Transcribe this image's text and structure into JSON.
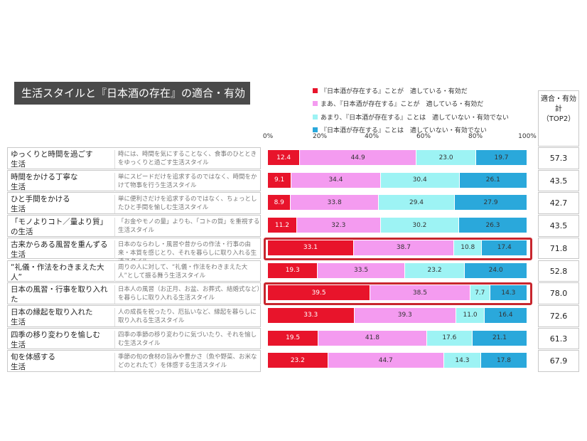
{
  "title": "生活スタイルと『日本酒の存在』の適合・有効度",
  "top2_header": [
    "適合・有効",
    "計",
    "（TOP2）"
  ],
  "colors": [
    "#e8142b",
    "#f49bf0",
    "#9df3f4",
    "#2aa8db"
  ],
  "chart_data": {
    "type": "bar",
    "stacked": "horizontal-100%",
    "xlim": [
      0,
      100
    ],
    "x_ticks": [
      "0%",
      "20%",
      "40%",
      "60%",
      "80%",
      "100%"
    ],
    "legend": [
      "『日本酒が存在する』ことが　適している・有効だ",
      "まあ、『日本酒が存在する』ことが　適している・有効だ",
      "あまり、『日本酒が存在する』ことは　適していない・有効でない",
      "『日本酒が存在する』ことは　適していない・有効でない"
    ],
    "legend_position": "top-right",
    "rows": [
      {
        "label": "ゆっくりと時間を過ごす\n生活",
        "desc": "時には、時間を気にすることなく、食事のひとときをゆっくりと過ごす生活スタイル",
        "values": [
          12.4,
          44.9,
          23.0,
          19.7
        ],
        "top2": "57.3",
        "highlight": false
      },
      {
        "label": "時間をかける丁寧な\n生活",
        "desc": "単にスピードだけを追求するのではなく、時間をかけて物事を行う生活スタイル",
        "values": [
          9.1,
          34.4,
          30.4,
          26.1
        ],
        "top2": "43.5",
        "highlight": false
      },
      {
        "label": "ひと手間をかける\n生活",
        "desc": "単に便利さだけを追求するのではなく、ちょっとしたひと手間を愉しむ生活スタイル",
        "values": [
          8.9,
          33.8,
          29.4,
          27.9
        ],
        "top2": "42.7",
        "highlight": false
      },
      {
        "label": "「モノよりコト／量より質」\nの生活",
        "desc": "「お金やモノの量」よりも、「コトの質」を重視する生活スタイル",
        "values": [
          11.2,
          32.3,
          30.2,
          26.3
        ],
        "top2": "43.5",
        "highlight": false
      },
      {
        "label": "古来からある風習を重んずる\n生活",
        "desc": "日本のならわし・風習や昔からの作法・行事の由来・本質を感じとり、それを暮らしに取り入れる生活スタイル",
        "values": [
          33.1,
          38.7,
          10.8,
          17.4
        ],
        "top2": "71.8",
        "highlight": true
      },
      {
        "label": "“礼儀・作法をわきまえた大人”\nの生活",
        "desc": "周りの人に対して、“礼儀・作法をわきまえた大人”として振る舞う生活スタイル",
        "values": [
          19.3,
          33.5,
          23.2,
          24.0
        ],
        "top2": "52.8",
        "highlight": false
      },
      {
        "label": "日本の風習・行事を取り入れた\n生活",
        "desc": "日本人の風習（お正月、お盆、お葬式、結婚式など）を暮らしに取り入れる生活スタイル",
        "values": [
          39.5,
          38.5,
          7.7,
          14.3
        ],
        "top2": "78.0",
        "highlight": true
      },
      {
        "label": "日本の縁起を取り入れた\n生活",
        "desc": "人の成長を祝ったり、厄払いなど、縁起を暮らしに取り入れる生活スタイル",
        "values": [
          33.3,
          39.3,
          11.0,
          16.4
        ],
        "top2": "72.6",
        "highlight": false
      },
      {
        "label": "四季の移り変わりを愉しむ\n生活",
        "desc": "四季の季節の移り変わりに気づいたり、それを愉しむ生活スタイル",
        "values": [
          19.5,
          41.8,
          17.6,
          21.1
        ],
        "top2": "61.3",
        "highlight": false
      },
      {
        "label": "旬を体感する\n生活",
        "desc": "季節の旬の食材の旨みや豊かさ（魚や野菜、お米などのとれたて）を体感する生活スタイル",
        "values": [
          23.2,
          44.7,
          14.3,
          17.8
        ],
        "top2": "67.9",
        "highlight": false
      }
    ]
  }
}
